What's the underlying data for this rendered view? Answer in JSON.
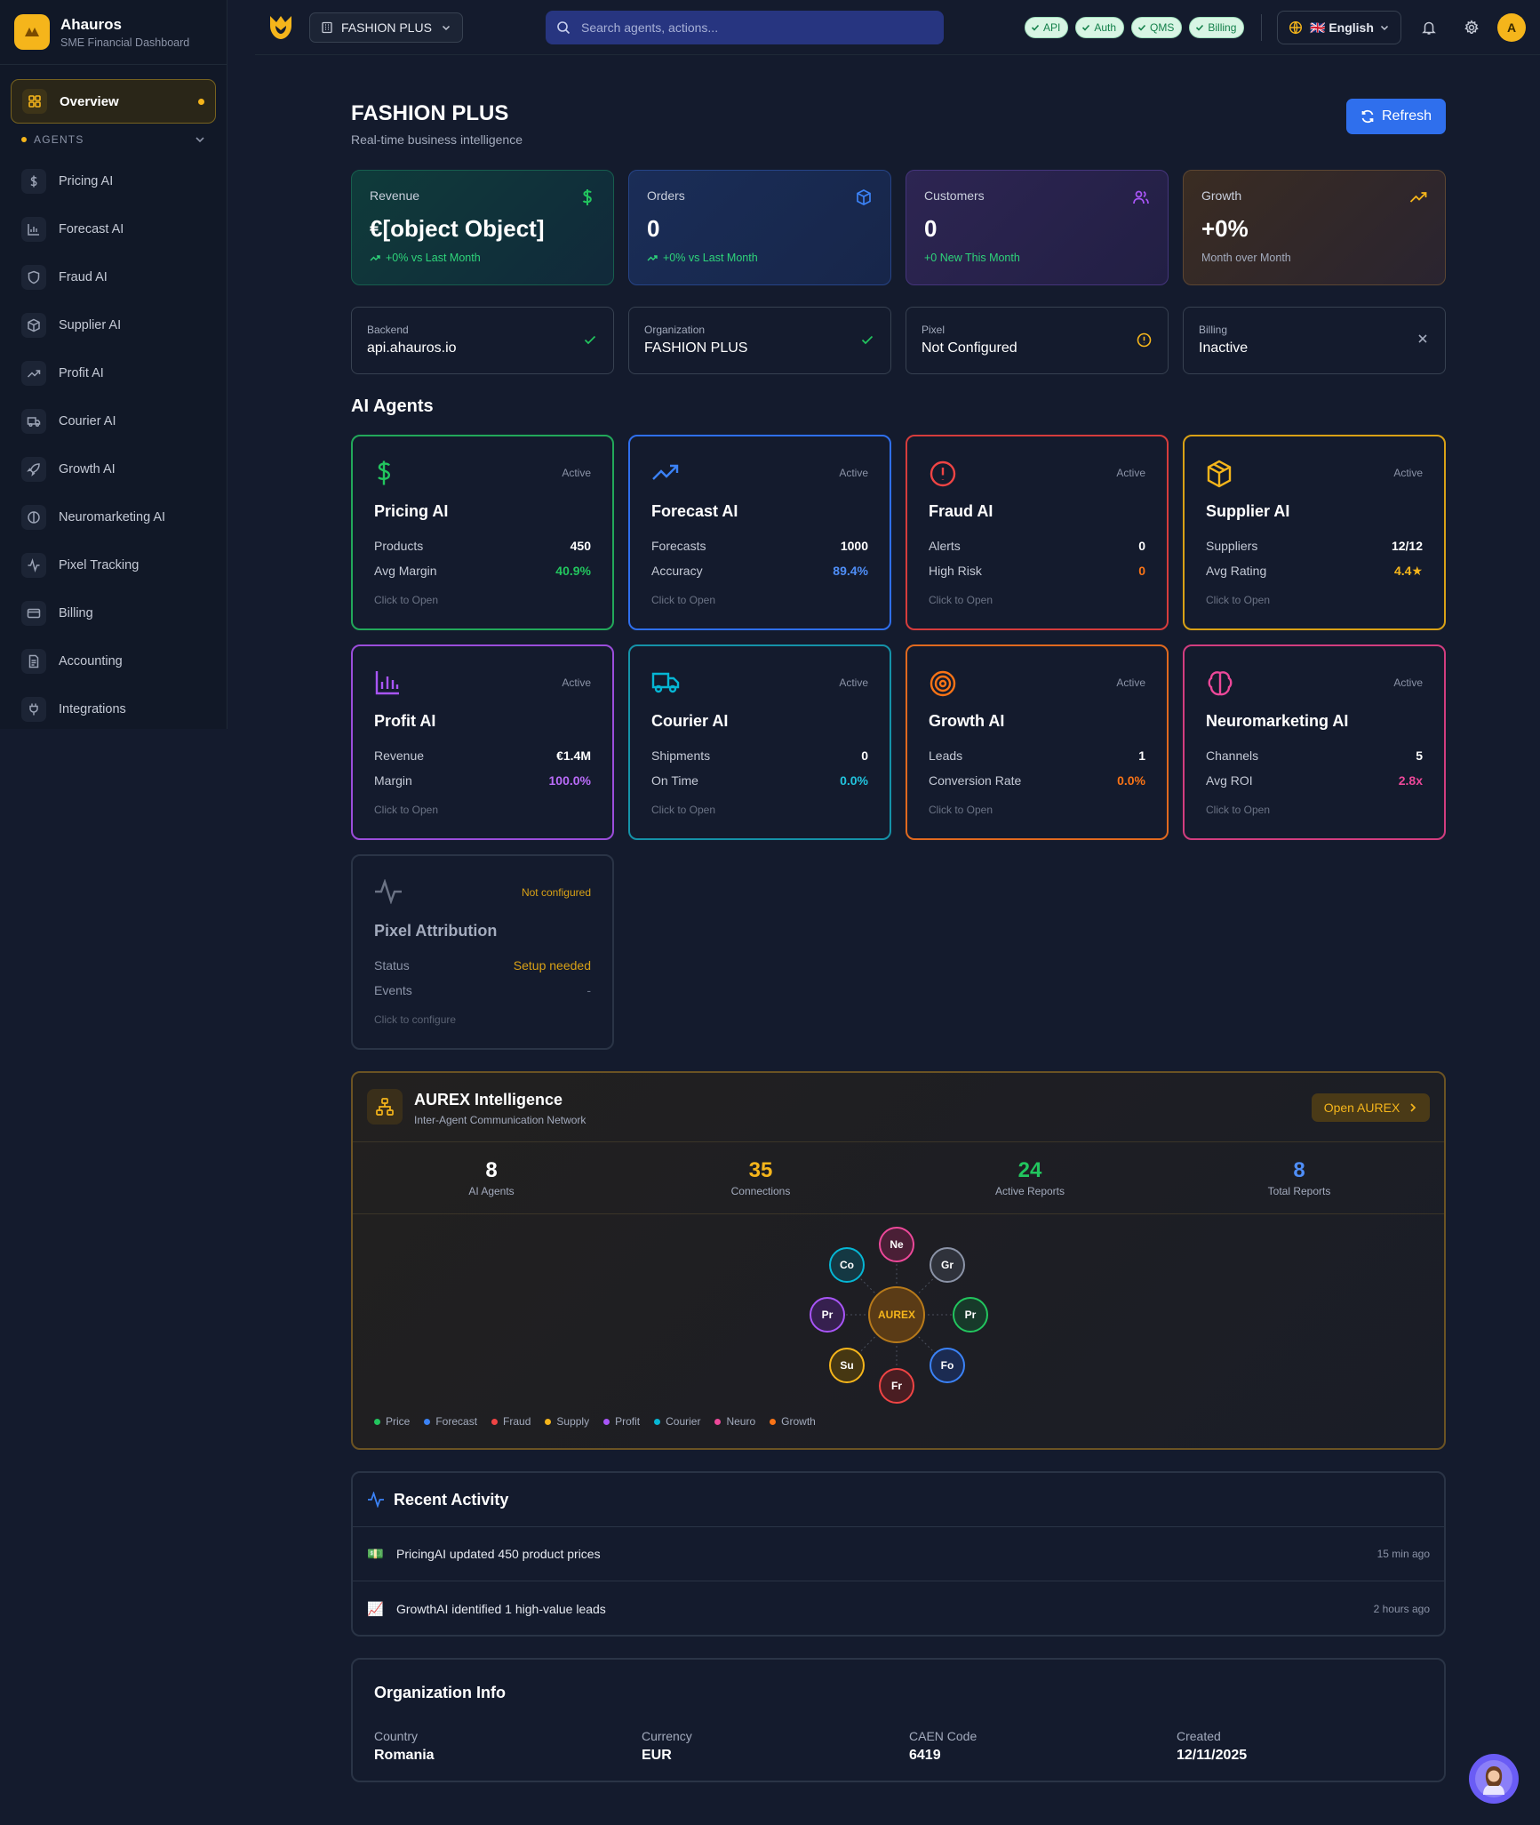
{
  "brand": {
    "name": "Ahauros",
    "subtitle": "SME Financial Dashboard"
  },
  "sidebar": {
    "overview": "Overview",
    "agents_heading": "AGENTS",
    "items": [
      {
        "label": "Pricing AI",
        "icon": "dollar-icon"
      },
      {
        "label": "Forecast AI",
        "icon": "bar-chart-icon"
      },
      {
        "label": "Fraud AI",
        "icon": "shield-icon"
      },
      {
        "label": "Supplier AI",
        "icon": "package-icon"
      },
      {
        "label": "Profit AI",
        "icon": "trending-up-icon"
      },
      {
        "label": "Courier AI",
        "icon": "truck-icon"
      },
      {
        "label": "Growth AI",
        "icon": "rocket-icon"
      },
      {
        "label": "Neuromarketing AI",
        "icon": "brain-icon"
      },
      {
        "label": "Pixel Tracking",
        "icon": "activity-icon"
      },
      {
        "label": "Billing",
        "icon": "credit-card-icon"
      },
      {
        "label": "Accounting",
        "icon": "document-icon"
      },
      {
        "label": "Integrations",
        "icon": "plug-icon"
      }
    ]
  },
  "topbar": {
    "org": "FASHION PLUS",
    "search_placeholder": "Search agents, actions...",
    "pills": [
      "API",
      "Auth",
      "QMS",
      "Billing"
    ],
    "language": "🇬🇧 English",
    "avatar_initial": "A"
  },
  "page": {
    "title": "FASHION PLUS",
    "subtitle": "Real-time business intelligence",
    "refresh": "Refresh"
  },
  "kpis": [
    {
      "label": "Revenue",
      "value": "€[object Object]",
      "sub": "+0% vs Last Month"
    },
    {
      "label": "Orders",
      "value": "0",
      "sub": "+0% vs Last Month"
    },
    {
      "label": "Customers",
      "value": "0",
      "sub": "+0 New This Month"
    },
    {
      "label": "Growth",
      "value": "+0%",
      "sub": "Month over Month"
    }
  ],
  "status_cards": [
    {
      "label": "Backend",
      "value": "api.ahauros.io"
    },
    {
      "label": "Organization",
      "value": "FASHION PLUS"
    },
    {
      "label": "Pixel",
      "value": "Not Configured"
    },
    {
      "label": "Billing",
      "value": "Inactive"
    }
  ],
  "agents_title": "AI Agents",
  "agents": [
    {
      "name": "Pricing AI",
      "status": "Active",
      "r1l": "Products",
      "r1v": "450",
      "r2l": "Avg Margin",
      "r2v": "40.9%",
      "cta": "Click to Open"
    },
    {
      "name": "Forecast AI",
      "status": "Active",
      "r1l": "Forecasts",
      "r1v": "1000",
      "r2l": "Accuracy",
      "r2v": "89.4%",
      "cta": "Click to Open"
    },
    {
      "name": "Fraud AI",
      "status": "Active",
      "r1l": "Alerts",
      "r1v": "0",
      "r2l": "High Risk",
      "r2v": "0",
      "cta": "Click to Open"
    },
    {
      "name": "Supplier AI",
      "status": "Active",
      "r1l": "Suppliers",
      "r1v": "12/12",
      "r2l": "Avg Rating",
      "r2v": "4.4★",
      "cta": "Click to Open"
    },
    {
      "name": "Profit AI",
      "status": "Active",
      "r1l": "Revenue",
      "r1v": "€1.4M",
      "r2l": "Margin",
      "r2v": "100.0%",
      "cta": "Click to Open"
    },
    {
      "name": "Courier AI",
      "status": "Active",
      "r1l": "Shipments",
      "r1v": "0",
      "r2l": "On Time",
      "r2v": "0.0%",
      "cta": "Click to Open"
    },
    {
      "name": "Growth AI",
      "status": "Active",
      "r1l": "Leads",
      "r1v": "1",
      "r2l": "Conversion Rate",
      "r2v": "0.0%",
      "cta": "Click to Open"
    },
    {
      "name": "Neuromarketing AI",
      "status": "Active",
      "r1l": "Channels",
      "r1v": "5",
      "r2l": "Avg ROI",
      "r2v": "2.8x",
      "cta": "Click to Open"
    },
    {
      "name": "Pixel Attribution",
      "status": "Not configured",
      "r1l": "Status",
      "r1v": "Setup needed",
      "r2l": "Events",
      "r2v": "-",
      "cta": "Click to configure"
    }
  ],
  "aurex": {
    "title": "AUREX Intelligence",
    "subtitle": "Inter-Agent Communication Network",
    "open": "Open AUREX",
    "stats": [
      {
        "value": "8",
        "label": "AI Agents"
      },
      {
        "value": "35",
        "label": "Connections"
      },
      {
        "value": "24",
        "label": "Active Reports"
      },
      {
        "value": "8",
        "label": "Total Reports"
      }
    ],
    "hub": "AUREX",
    "nodes": [
      "Ne",
      "Gr",
      "Pr",
      "Fo",
      "Fr",
      "Su",
      "Pr",
      "Co"
    ],
    "legend": [
      "Price",
      "Forecast",
      "Fraud",
      "Supply",
      "Profit",
      "Courier",
      "Neuro",
      "Growth"
    ]
  },
  "activity": {
    "title": "Recent Activity",
    "items": [
      {
        "emoji": "💵",
        "text": "PricingAI updated 450 product prices",
        "time": "15 min ago"
      },
      {
        "emoji": "📈",
        "text": "GrowthAI identified 1 high-value leads",
        "time": "2 hours ago"
      }
    ]
  },
  "org_info": {
    "title": "Organization Info",
    "fields": [
      {
        "label": "Country",
        "value": "Romania"
      },
      {
        "label": "Currency",
        "value": "EUR"
      },
      {
        "label": "CAEN Code",
        "value": "6419"
      },
      {
        "label": "Created",
        "value": "12/11/2025"
      }
    ]
  },
  "colors": {
    "accent": "#f5b51b",
    "primary": "#2f6fed",
    "green": "#22c55e",
    "blue": "#3b82f6",
    "red": "#ef4444",
    "amber": "#f5b51b",
    "purple": "#a855f7",
    "cyan": "#06b6d4",
    "orange": "#f97316",
    "pink": "#ec4899"
  }
}
